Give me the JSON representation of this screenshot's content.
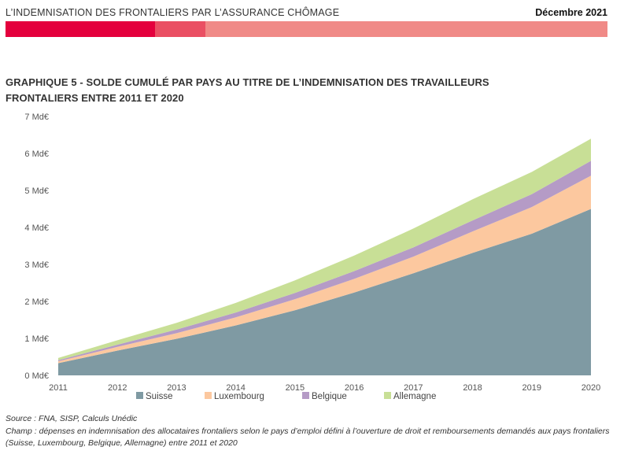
{
  "header": {
    "title": "L’INDEMNISATION DES FRONTALIERS PAR L’ASSURANCE CHÔMAGE",
    "date": "Décembre 2021",
    "bar_colors": [
      "#e4003d",
      "#ea4f63",
      "#f08a87"
    ]
  },
  "chart_data": {
    "type": "area",
    "stacked": true,
    "title_line1": "GRAPHIQUE 5 - SOLDE CUMULÉ PAR PAYS AU TITRE DE L’INDEMNISATION DES TRAVAILLEURS",
    "title_line2": "FRONTALIERS ENTRE 2011 ET 2020",
    "x": [
      "2011",
      "2012",
      "2013",
      "2014",
      "2015",
      "2016",
      "2017",
      "2018",
      "2019",
      "2020"
    ],
    "y_ticks": [
      "0 Md€",
      "1 Md€",
      "2 Md€",
      "3 Md€",
      "4 Md€",
      "5 Md€",
      "6 Md€",
      "7 Md€"
    ],
    "ylim": [
      0,
      7
    ],
    "series": [
      {
        "name": "Suisse",
        "color": "#7f9aa3",
        "values": [
          0.33,
          0.67,
          0.99,
          1.35,
          1.76,
          2.24,
          2.76,
          3.31,
          3.83,
          4.5
        ]
      },
      {
        "name": "Luxembourg",
        "color": "#fcc89f",
        "values": [
          0.05,
          0.1,
          0.15,
          0.22,
          0.3,
          0.37,
          0.45,
          0.58,
          0.72,
          0.9
        ]
      },
      {
        "name": "Belgique",
        "color": "#b59bc6",
        "values": [
          0.03,
          0.06,
          0.1,
          0.13,
          0.17,
          0.21,
          0.25,
          0.3,
          0.35,
          0.4
        ]
      },
      {
        "name": "Allemagne",
        "color": "#c8df96",
        "values": [
          0.06,
          0.12,
          0.18,
          0.26,
          0.34,
          0.42,
          0.51,
          0.57,
          0.6,
          0.6
        ]
      }
    ],
    "legend_position": "bottom",
    "grid": false
  },
  "notes": {
    "source": "Source : FNA, SISP, Calculs Unédic",
    "champ": "Champ : dépenses en indemnisation des allocataires frontaliers selon le pays d’emploi défini à l’ouverture de droit et remboursements demandés aux pays frontaliers (Suisse, Luxembourg, Belgique, Allemagne) entre 2011 et 2020"
  }
}
